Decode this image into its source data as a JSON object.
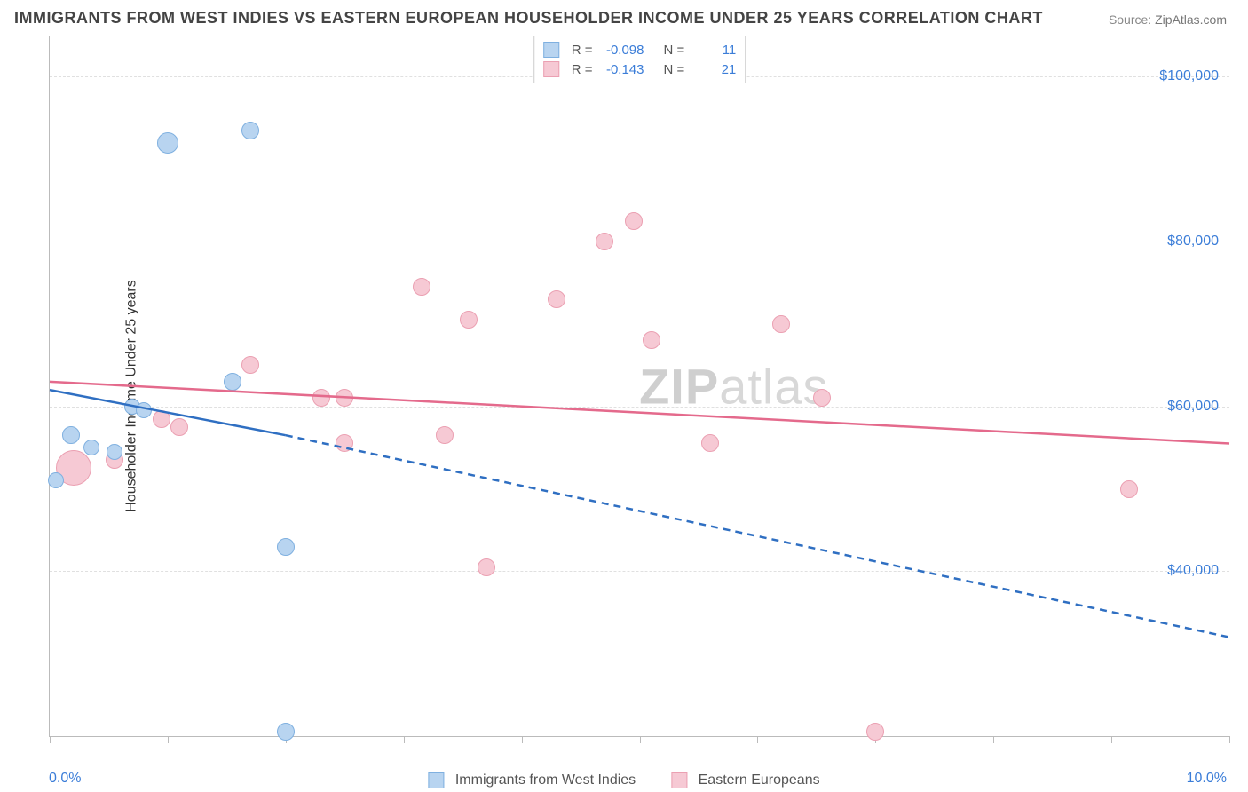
{
  "title": "IMMIGRANTS FROM WEST INDIES VS EASTERN EUROPEAN HOUSEHOLDER INCOME UNDER 25 YEARS CORRELATION CHART",
  "source_label": "Source:",
  "source_value": "ZipAtlas.com",
  "watermark_bold": "ZIP",
  "watermark_rest": "atlas",
  "ylabel": "Householder Income Under 25 years",
  "xaxis": {
    "min_label": "0.0%",
    "max_label": "10.0%",
    "min": 0.0,
    "max": 10.0,
    "ticks": [
      0.0,
      1.0,
      2.0,
      3.0,
      4.0,
      5.0,
      6.0,
      7.0,
      8.0,
      9.0,
      10.0
    ]
  },
  "yaxis": {
    "min": 20000,
    "max": 105000,
    "grid": [
      40000,
      60000,
      80000,
      100000
    ],
    "tick_labels": [
      "$40,000",
      "$60,000",
      "$80,000",
      "$100,000"
    ]
  },
  "series": {
    "a": {
      "name": "Immigrants from West Indies",
      "fill": "#b8d4f0",
      "stroke": "#7fb0e0",
      "line_color": "#2f6fc2",
      "R": "-0.098",
      "N": "11",
      "trend": {
        "x1": 0.0,
        "y1": 62000,
        "x2": 2.0,
        "y2": 56500,
        "x2_ext": 10.0,
        "y2_ext": 32000
      },
      "points": [
        {
          "x": 0.18,
          "y": 56500,
          "r": 10
        },
        {
          "x": 0.35,
          "y": 55000,
          "r": 9
        },
        {
          "x": 0.55,
          "y": 54500,
          "r": 9
        },
        {
          "x": 0.7,
          "y": 60000,
          "r": 9
        },
        {
          "x": 0.8,
          "y": 59500,
          "r": 9
        },
        {
          "x": 1.0,
          "y": 92000,
          "r": 12
        },
        {
          "x": 1.55,
          "y": 63000,
          "r": 10
        },
        {
          "x": 1.7,
          "y": 93500,
          "r": 10
        },
        {
          "x": 2.0,
          "y": 43000,
          "r": 10
        },
        {
          "x": 2.0,
          "y": 20500,
          "r": 10
        },
        {
          "x": 0.05,
          "y": 51000,
          "r": 9
        }
      ]
    },
    "b": {
      "name": "Eastern Europeans",
      "fill": "#f6c9d4",
      "stroke": "#eba0b2",
      "line_color": "#e46a8c",
      "R": "-0.143",
      "N": "21",
      "trend": {
        "x1": 0.0,
        "y1": 63000,
        "x2": 10.0,
        "y2": 55500
      },
      "points": [
        {
          "x": 0.2,
          "y": 52500,
          "r": 20
        },
        {
          "x": 0.55,
          "y": 53500,
          "r": 10
        },
        {
          "x": 0.95,
          "y": 58500,
          "r": 10
        },
        {
          "x": 1.1,
          "y": 57500,
          "r": 10
        },
        {
          "x": 1.7,
          "y": 65000,
          "r": 10
        },
        {
          "x": 2.3,
          "y": 61000,
          "r": 10
        },
        {
          "x": 2.5,
          "y": 55500,
          "r": 10
        },
        {
          "x": 2.5,
          "y": 61000,
          "r": 10
        },
        {
          "x": 3.15,
          "y": 74500,
          "r": 10
        },
        {
          "x": 3.35,
          "y": 56500,
          "r": 10
        },
        {
          "x": 3.55,
          "y": 70500,
          "r": 10
        },
        {
          "x": 3.7,
          "y": 40500,
          "r": 10
        },
        {
          "x": 4.3,
          "y": 73000,
          "r": 10
        },
        {
          "x": 4.7,
          "y": 80000,
          "r": 10
        },
        {
          "x": 4.95,
          "y": 82500,
          "r": 10
        },
        {
          "x": 5.1,
          "y": 68000,
          "r": 10
        },
        {
          "x": 5.6,
          "y": 55500,
          "r": 10
        },
        {
          "x": 6.2,
          "y": 70000,
          "r": 10
        },
        {
          "x": 6.55,
          "y": 61000,
          "r": 10
        },
        {
          "x": 7.0,
          "y": 20500,
          "r": 10
        },
        {
          "x": 9.15,
          "y": 50000,
          "r": 10
        }
      ]
    }
  },
  "legend_R_label": "R =",
  "legend_N_label": "N ="
}
